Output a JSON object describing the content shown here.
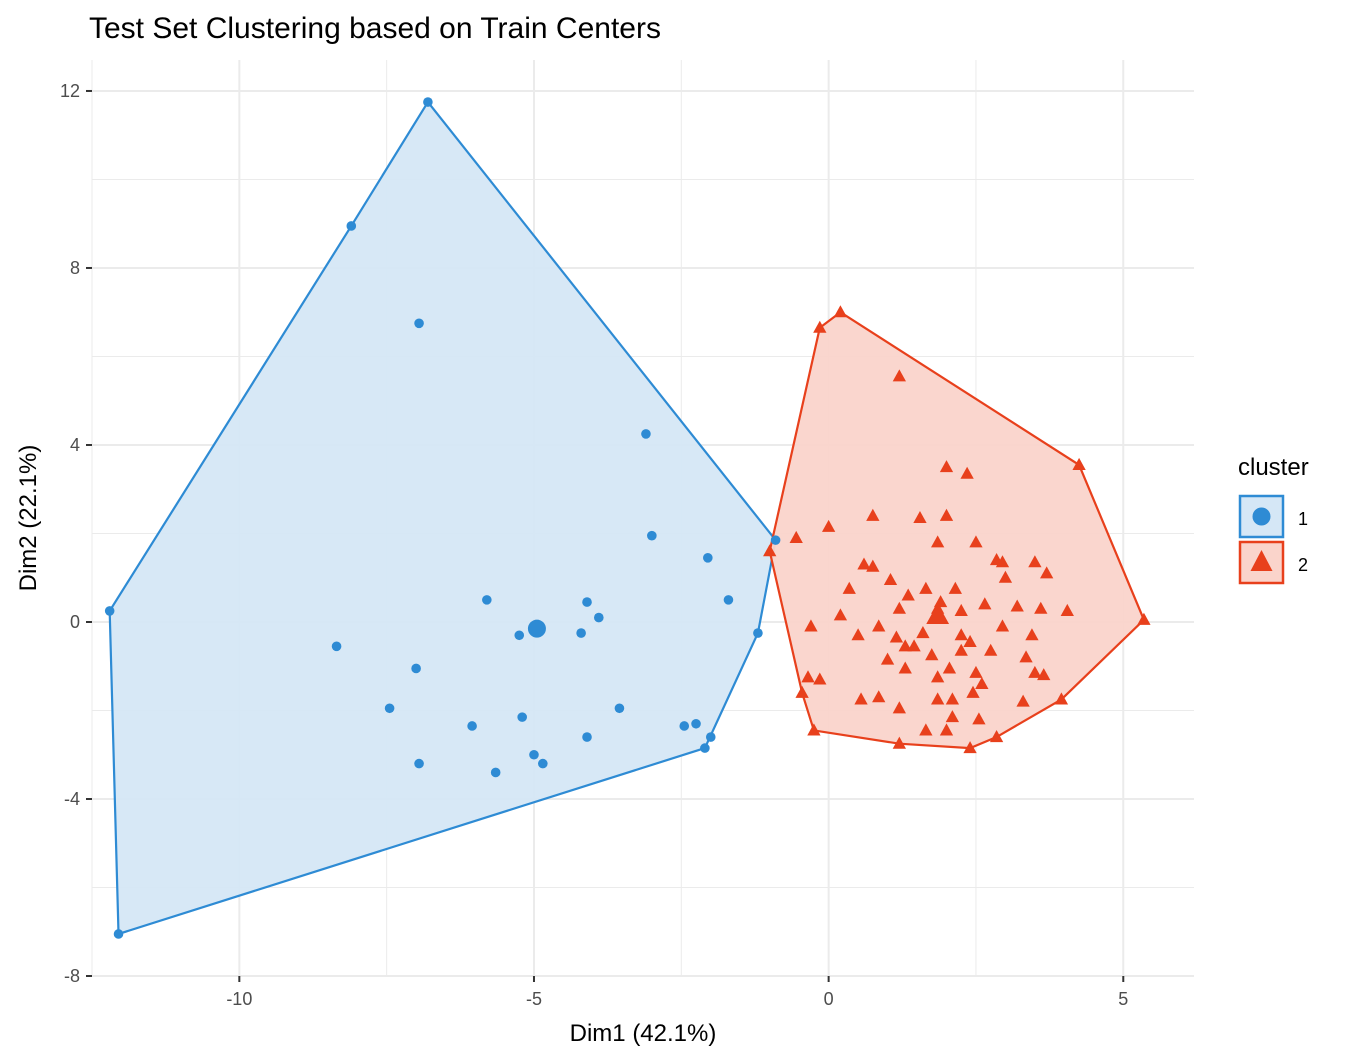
{
  "chart_data": {
    "type": "scatter",
    "title": "Test Set Clustering based on Train Centers",
    "xlabel": "Dim1 (42.1%)",
    "ylabel": "Dim2 (22.1%)",
    "xlim": [
      -12.5,
      6.2
    ],
    "ylim": [
      -8.0,
      12.7
    ],
    "x_ticks": [
      -10,
      -5,
      0,
      5
    ],
    "y_ticks": [
      -8,
      -4,
      0,
      4,
      8,
      12
    ],
    "x_tick_labels": [
      "-10",
      "-5",
      "0",
      "5"
    ],
    "y_tick_labels": [
      "-8",
      "-4",
      "0",
      "4",
      "8",
      "12"
    ],
    "grid": true,
    "legend": {
      "title": "cluster",
      "position": "right",
      "entries": [
        "1",
        "2"
      ]
    },
    "series": [
      {
        "name": "1",
        "marker": "circle",
        "color": "#2E8BD4",
        "fill": "#D5E7F6",
        "center": [
          -4.95,
          -0.15
        ],
        "hull": [
          [
            -6.8,
            11.75
          ],
          [
            -8.1,
            8.95
          ],
          [
            -12.2,
            0.25
          ],
          [
            -12.05,
            -7.05
          ],
          [
            -2.1,
            -2.85
          ],
          [
            -1.2,
            -0.25
          ],
          [
            -0.9,
            1.85
          ]
        ],
        "points": [
          [
            -6.8,
            11.75
          ],
          [
            -8.1,
            8.95
          ],
          [
            -6.95,
            6.75
          ],
          [
            -3.1,
            4.25
          ],
          [
            -3.0,
            1.95
          ],
          [
            -2.05,
            1.45
          ],
          [
            -1.7,
            0.5
          ],
          [
            -0.9,
            1.85
          ],
          [
            -1.2,
            -0.25
          ],
          [
            -5.8,
            0.5
          ],
          [
            -5.25,
            -0.3
          ],
          [
            -4.1,
            0.45
          ],
          [
            -3.9,
            0.1
          ],
          [
            -4.2,
            -0.25
          ],
          [
            -8.35,
            -0.55
          ],
          [
            -7.0,
            -1.05
          ],
          [
            -7.45,
            -1.95
          ],
          [
            -6.05,
            -2.35
          ],
          [
            -5.2,
            -2.15
          ],
          [
            -3.55,
            -1.95
          ],
          [
            -4.1,
            -2.6
          ],
          [
            -2.45,
            -2.35
          ],
          [
            -2.25,
            -2.3
          ],
          [
            -2.0,
            -2.6
          ],
          [
            -2.1,
            -2.85
          ],
          [
            -5.0,
            -3.0
          ],
          [
            -4.85,
            -3.2
          ],
          [
            -5.65,
            -3.4
          ],
          [
            -6.95,
            -3.2
          ],
          [
            -12.2,
            0.25
          ],
          [
            -12.05,
            -7.05
          ]
        ]
      },
      {
        "name": "2",
        "marker": "triangle",
        "color": "#E8401C",
        "fill": "#FAD4CB",
        "center": [
          1.85,
          0.15
        ],
        "hull": [
          [
            0.2,
            7.0
          ],
          [
            -0.15,
            6.65
          ],
          [
            -1.0,
            1.6
          ],
          [
            -0.45,
            -1.6
          ],
          [
            -0.25,
            -2.45
          ],
          [
            1.2,
            -2.75
          ],
          [
            2.4,
            -2.85
          ],
          [
            2.85,
            -2.6
          ],
          [
            3.95,
            -1.75
          ],
          [
            5.35,
            0.05
          ],
          [
            4.25,
            3.55
          ]
        ],
        "points": [
          [
            0.2,
            7.0
          ],
          [
            -0.15,
            6.65
          ],
          [
            1.2,
            5.55
          ],
          [
            4.25,
            3.55
          ],
          [
            2.0,
            3.5
          ],
          [
            2.35,
            3.35
          ],
          [
            0.0,
            2.15
          ],
          [
            0.75,
            2.4
          ],
          [
            1.55,
            2.35
          ],
          [
            2.0,
            2.4
          ],
          [
            -0.55,
            1.9
          ],
          [
            -1.0,
            1.6
          ],
          [
            1.85,
            1.8
          ],
          [
            2.5,
            1.8
          ],
          [
            0.6,
            1.3
          ],
          [
            0.75,
            1.25
          ],
          [
            2.85,
            1.4
          ],
          [
            2.95,
            1.35
          ],
          [
            3.5,
            1.35
          ],
          [
            3.7,
            1.1
          ],
          [
            3.0,
            1.0
          ],
          [
            1.05,
            0.95
          ],
          [
            1.65,
            0.75
          ],
          [
            2.15,
            0.75
          ],
          [
            1.35,
            0.6
          ],
          [
            1.9,
            0.45
          ],
          [
            0.35,
            0.75
          ],
          [
            1.2,
            0.3
          ],
          [
            1.85,
            0.3
          ],
          [
            2.25,
            0.25
          ],
          [
            0.2,
            0.15
          ],
          [
            -0.3,
            -0.1
          ],
          [
            0.5,
            -0.3
          ],
          [
            0.85,
            -0.1
          ],
          [
            1.15,
            -0.35
          ],
          [
            1.6,
            -0.25
          ],
          [
            2.25,
            -0.3
          ],
          [
            2.65,
            0.4
          ],
          [
            3.2,
            0.35
          ],
          [
            3.6,
            0.3
          ],
          [
            4.05,
            0.25
          ],
          [
            2.95,
            -0.1
          ],
          [
            3.45,
            -0.3
          ],
          [
            1.3,
            -0.55
          ],
          [
            1.45,
            -0.55
          ],
          [
            2.4,
            -0.45
          ],
          [
            3.35,
            -0.8
          ],
          [
            1.0,
            -0.85
          ],
          [
            1.75,
            -0.75
          ],
          [
            2.25,
            -0.65
          ],
          [
            2.75,
            -0.65
          ],
          [
            3.5,
            -1.15
          ],
          [
            1.3,
            -1.05
          ],
          [
            2.05,
            -1.05
          ],
          [
            2.5,
            -1.15
          ],
          [
            3.65,
            -1.2
          ],
          [
            1.85,
            -1.25
          ],
          [
            2.6,
            -1.4
          ],
          [
            -0.35,
            -1.25
          ],
          [
            -0.15,
            -1.3
          ],
          [
            -0.45,
            -1.6
          ],
          [
            0.55,
            -1.75
          ],
          [
            0.85,
            -1.7
          ],
          [
            2.45,
            -1.6
          ],
          [
            1.85,
            -1.75
          ],
          [
            2.1,
            -1.75
          ],
          [
            3.3,
            -1.8
          ],
          [
            3.95,
            -1.75
          ],
          [
            1.2,
            -1.95
          ],
          [
            2.1,
            -2.15
          ],
          [
            2.55,
            -2.2
          ],
          [
            1.65,
            -2.45
          ],
          [
            2.0,
            -2.45
          ],
          [
            -0.25,
            -2.45
          ],
          [
            1.2,
            -2.75
          ],
          [
            2.4,
            -2.85
          ],
          [
            2.85,
            -2.6
          ],
          [
            5.35,
            0.05
          ]
        ]
      }
    ]
  }
}
